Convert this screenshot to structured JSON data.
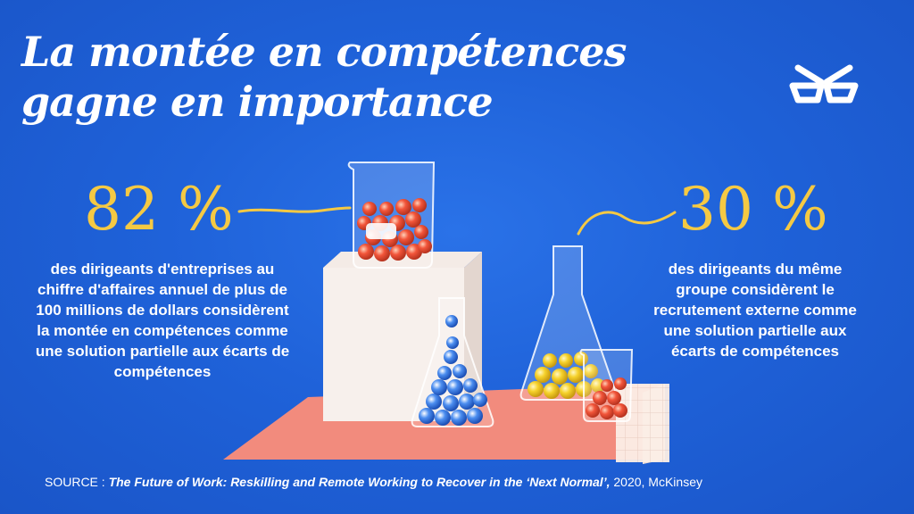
{
  "title": "La montée en compétences gagne en importance",
  "stats": {
    "left": {
      "value": "82 %",
      "description": "des dirigeants d'entreprises au chiffre d'affaires annuel de plus de 100 millions de dollars considèrent la montée en compétences comme une solution partielle aux écarts de compétences"
    },
    "right": {
      "value": "30 %",
      "description": "des dirigeants du même groupe considèrent le recrutement externe comme une solution partielle aux écarts de compétences"
    }
  },
  "source": {
    "prefix": "SOURCE : ",
    "work": "The Future of Work: Reskilling and Remote Working to Recover in the ‘Next Normal’,",
    "suffix": " 2020, McKinsey"
  },
  "logo_icon": "glasses-icon",
  "colors": {
    "background": "#1f62d9",
    "accent": "#f5c943",
    "text": "#ffffff",
    "platform": "#f28b7d"
  }
}
